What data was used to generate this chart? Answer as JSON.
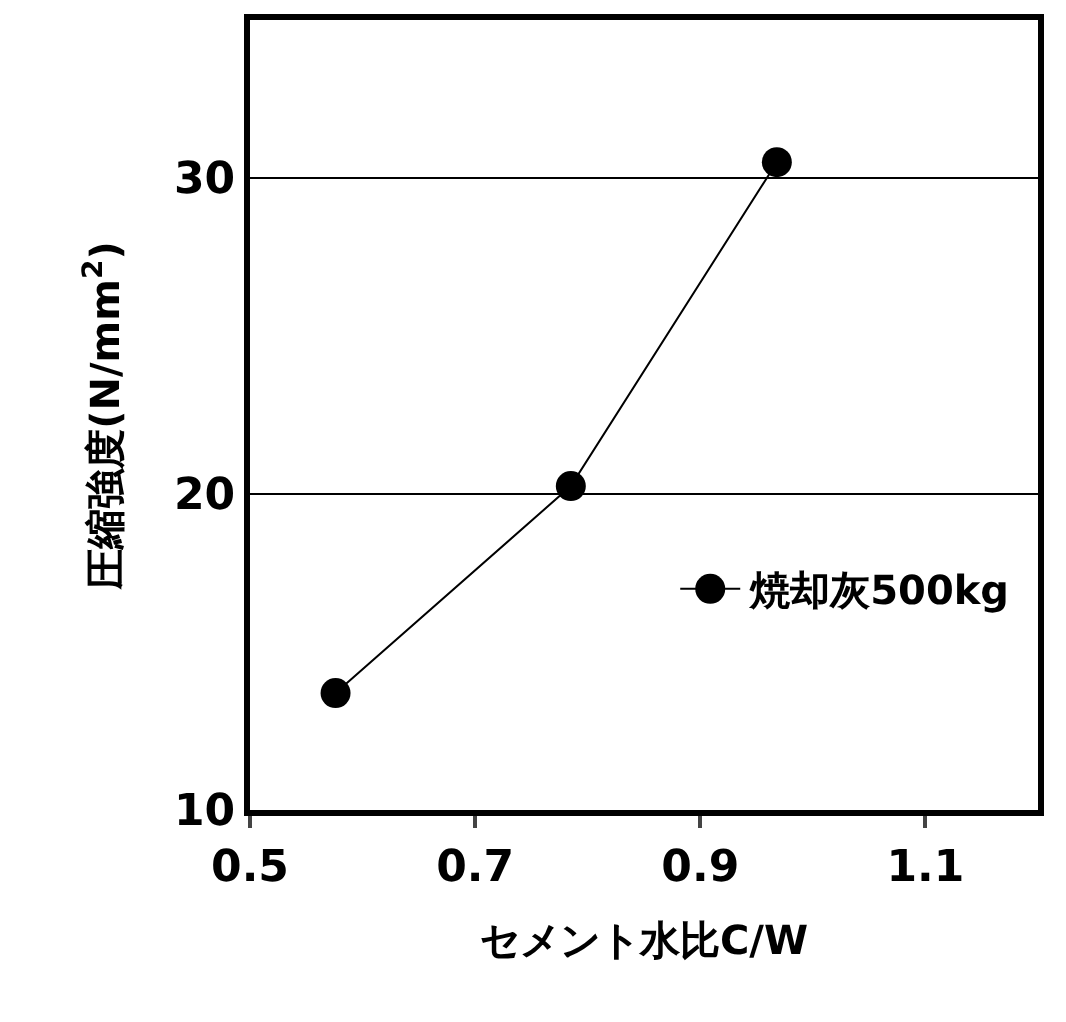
{
  "chart_data": {
    "type": "line",
    "xlabel": "セメント水比C/W",
    "ylabel": "圧縮強度(N/mm$^{2}$)",
    "series": [
      {
        "name": "焼却灰500kg",
        "color": "#000000",
        "x": [
          0.576,
          0.785,
          0.968
        ],
        "values": [
          13.7,
          20.25,
          30.5
        ]
      }
    ],
    "xlim": [
      0.5,
      1.2
    ],
    "xticks": [
      0.5,
      0.7,
      0.9,
      1.1
    ],
    "ylim": [
      10,
      35
    ],
    "yticks": [
      10,
      20,
      30
    ],
    "grid": "y",
    "legend": "bottom right",
    "marker": "circle",
    "line_style": "solid"
  }
}
